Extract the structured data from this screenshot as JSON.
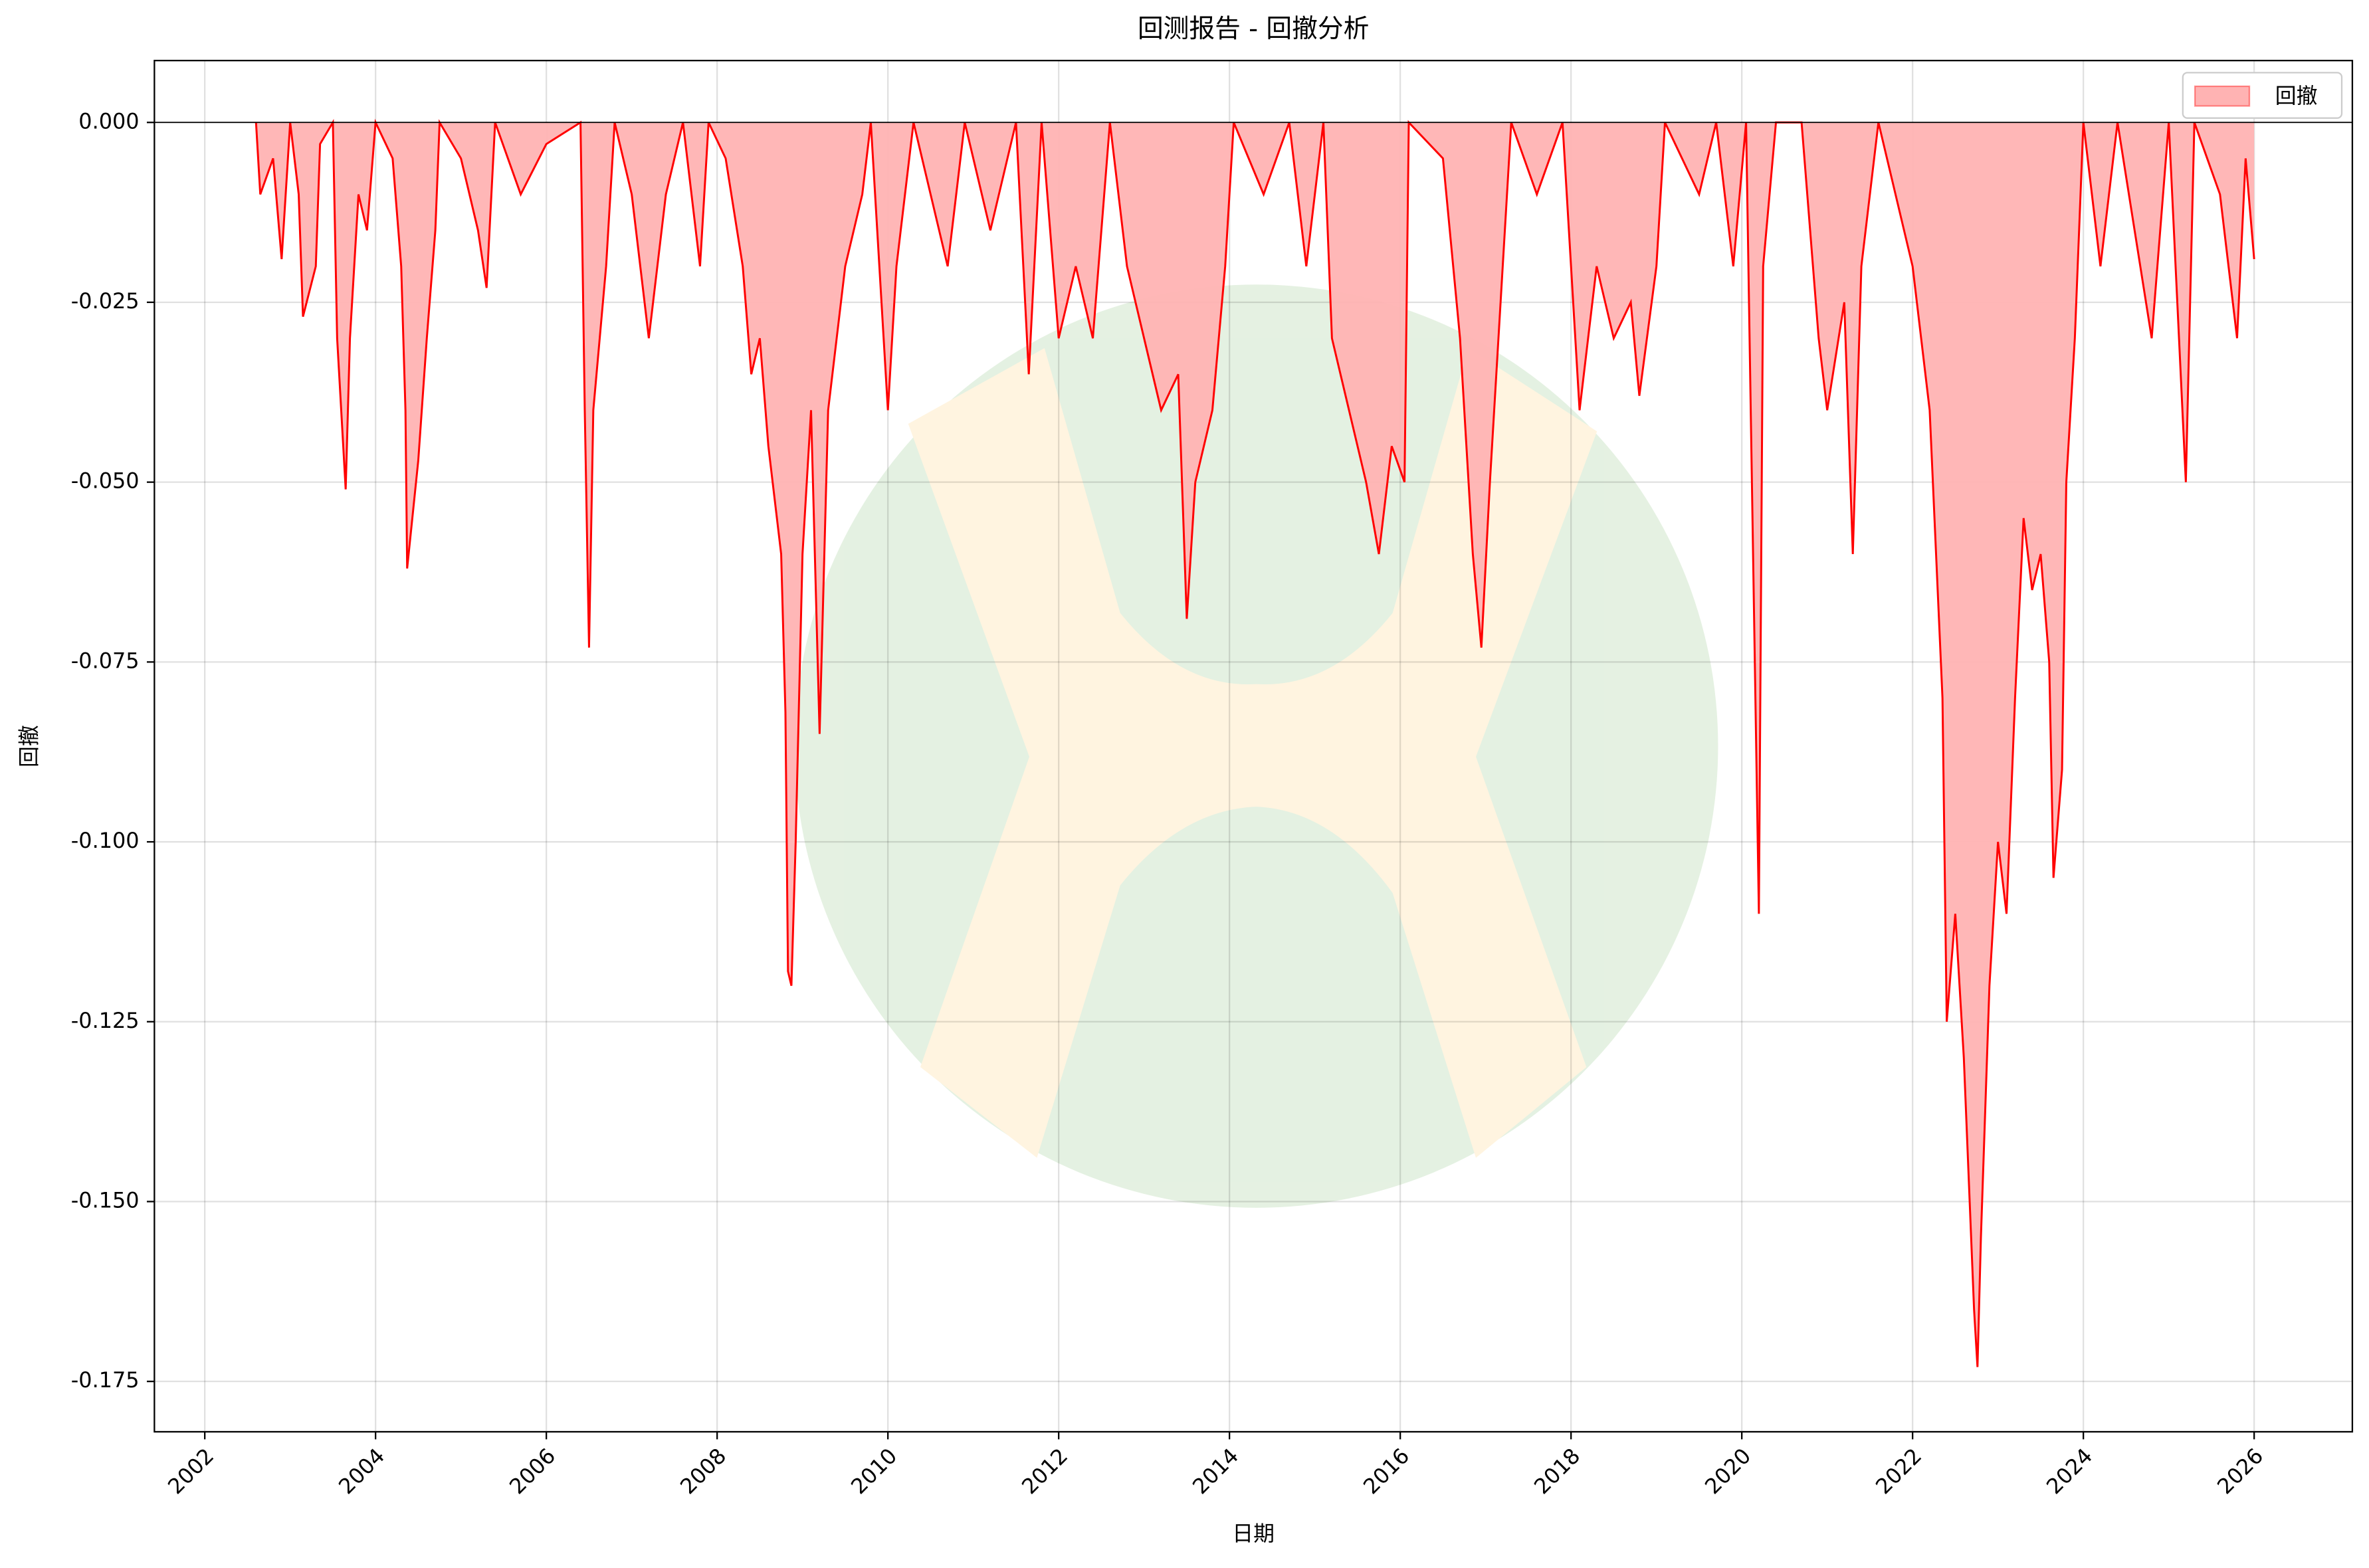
{
  "chart_data": {
    "type": "area",
    "title": "回测报告 - 回撤分析",
    "xlabel": "日期",
    "ylabel": "回撤",
    "x": [
      2002.6,
      2002.65,
      2002.8,
      2002.9,
      2003.0,
      2003.1,
      2003.15,
      2003.3,
      2003.35,
      2003.5,
      2003.55,
      2003.65,
      2003.7,
      2003.8,
      2003.9,
      2004.0,
      2004.2,
      2004.3,
      2004.35,
      2004.37,
      2004.5,
      2004.6,
      2004.7,
      2004.75,
      2005.0,
      2005.2,
      2005.3,
      2005.4,
      2005.7,
      2006.0,
      2006.4,
      2006.45,
      2006.5,
      2006.55,
      2006.7,
      2006.8,
      2007.0,
      2007.2,
      2007.4,
      2007.6,
      2007.8,
      2007.9,
      2008.1,
      2008.3,
      2008.4,
      2008.5,
      2008.6,
      2008.75,
      2008.8,
      2008.83,
      2008.87,
      2008.92,
      2009.0,
      2009.1,
      2009.2,
      2009.3,
      2009.5,
      2009.7,
      2009.8,
      2010.0,
      2010.1,
      2010.3,
      2010.5,
      2010.7,
      2010.9,
      2011.2,
      2011.5,
      2011.65,
      2011.8,
      2012.0,
      2012.2,
      2012.4,
      2012.6,
      2012.8,
      2013.0,
      2013.2,
      2013.4,
      2013.5,
      2013.6,
      2013.8,
      2013.95,
      2014.05,
      2014.4,
      2014.7,
      2014.9,
      2015.1,
      2015.2,
      2015.4,
      2015.6,
      2015.75,
      2015.9,
      2016.05,
      2016.1,
      2016.5,
      2016.7,
      2016.85,
      2016.95,
      2017.05,
      2017.2,
      2017.3,
      2017.6,
      2017.9,
      2018.1,
      2018.3,
      2018.5,
      2018.7,
      2018.8,
      2019.0,
      2019.1,
      2019.5,
      2019.7,
      2019.9,
      2020.05,
      2020.2,
      2020.25,
      2020.4,
      2020.7,
      2020.9,
      2021.0,
      2021.2,
      2021.3,
      2021.4,
      2021.6,
      2021.8,
      2022.0,
      2022.1,
      2022.2,
      2022.35,
      2022.4,
      2022.5,
      2022.6,
      2022.72,
      2022.76,
      2022.8,
      2022.9,
      2023.0,
      2023.1,
      2023.2,
      2023.3,
      2023.4,
      2023.5,
      2023.6,
      2023.65,
      2023.75,
      2023.8,
      2023.9,
      2024.0,
      2024.2,
      2024.4,
      2024.6,
      2024.8,
      2025.0,
      2025.2,
      2025.3,
      2025.6,
      2025.8,
      2025.9,
      2026.0
    ],
    "series": [
      {
        "name": "回撤",
        "color": "#ff0000",
        "fill": "#ffb3b3",
        "values": [
          0,
          -0.01,
          -0.005,
          -0.019,
          0,
          -0.01,
          -0.027,
          -0.02,
          -0.003,
          0,
          -0.03,
          -0.051,
          -0.03,
          -0.01,
          -0.015,
          0,
          -0.005,
          -0.02,
          -0.04,
          -0.062,
          -0.047,
          -0.03,
          -0.015,
          0,
          -0.005,
          -0.015,
          -0.023,
          0,
          -0.01,
          -0.003,
          0,
          -0.04,
          -0.073,
          -0.04,
          -0.02,
          0,
          -0.01,
          -0.03,
          -0.01,
          0,
          -0.02,
          0,
          -0.005,
          -0.02,
          -0.035,
          -0.03,
          -0.045,
          -0.06,
          -0.082,
          -0.118,
          -0.12,
          -0.1,
          -0.06,
          -0.04,
          -0.085,
          -0.04,
          -0.02,
          -0.01,
          0,
          -0.04,
          -0.02,
          0,
          -0.01,
          -0.02,
          0,
          -0.015,
          0,
          -0.035,
          0,
          -0.03,
          -0.02,
          -0.03,
          0,
          -0.02,
          -0.03,
          -0.04,
          -0.035,
          -0.069,
          -0.05,
          -0.04,
          -0.02,
          0,
          -0.01,
          0,
          -0.02,
          0,
          -0.03,
          -0.04,
          -0.05,
          -0.06,
          -0.045,
          -0.05,
          0,
          -0.005,
          -0.03,
          -0.06,
          -0.073,
          -0.05,
          -0.02,
          0,
          -0.01,
          0,
          -0.04,
          -0.02,
          -0.03,
          -0.025,
          -0.038,
          -0.02,
          0,
          -0.01,
          0,
          -0.02,
          0,
          -0.11,
          -0.02,
          0,
          0,
          -0.03,
          -0.04,
          -0.025,
          -0.06,
          -0.02,
          0,
          -0.01,
          -0.02,
          -0.03,
          -0.04,
          -0.08,
          -0.125,
          -0.11,
          -0.13,
          -0.165,
          -0.173,
          -0.155,
          -0.12,
          -0.1,
          -0.11,
          -0.08,
          -0.055,
          -0.065,
          -0.06,
          -0.075,
          -0.105,
          -0.09,
          -0.05,
          -0.03,
          0,
          -0.02,
          0,
          -0.015,
          -0.03,
          0,
          -0.05,
          0,
          -0.01,
          -0.03,
          -0.005,
          -0.019
        ]
      }
    ],
    "xlim": [
      2001.41,
      2027.15
    ],
    "xticks": [
      2002,
      2004,
      2006,
      2008,
      2010,
      2012,
      2014,
      2016,
      2018,
      2020,
      2022,
      2024,
      2026
    ],
    "ylim": [
      -0.182,
      0.0086
    ],
    "yticks": [
      {
        "value": 0,
        "label": "0.000"
      },
      {
        "value": -0.025,
        "label": "-0.025"
      },
      {
        "value": -0.05,
        "label": "-0.050"
      },
      {
        "value": -0.075,
        "label": "-0.075"
      },
      {
        "value": -0.1,
        "label": "-0.100"
      },
      {
        "value": -0.125,
        "label": "-0.125"
      },
      {
        "value": -0.15,
        "label": "-0.150"
      },
      {
        "value": -0.175,
        "label": "-0.175"
      }
    ],
    "grid": true,
    "legend": "upper right"
  }
}
